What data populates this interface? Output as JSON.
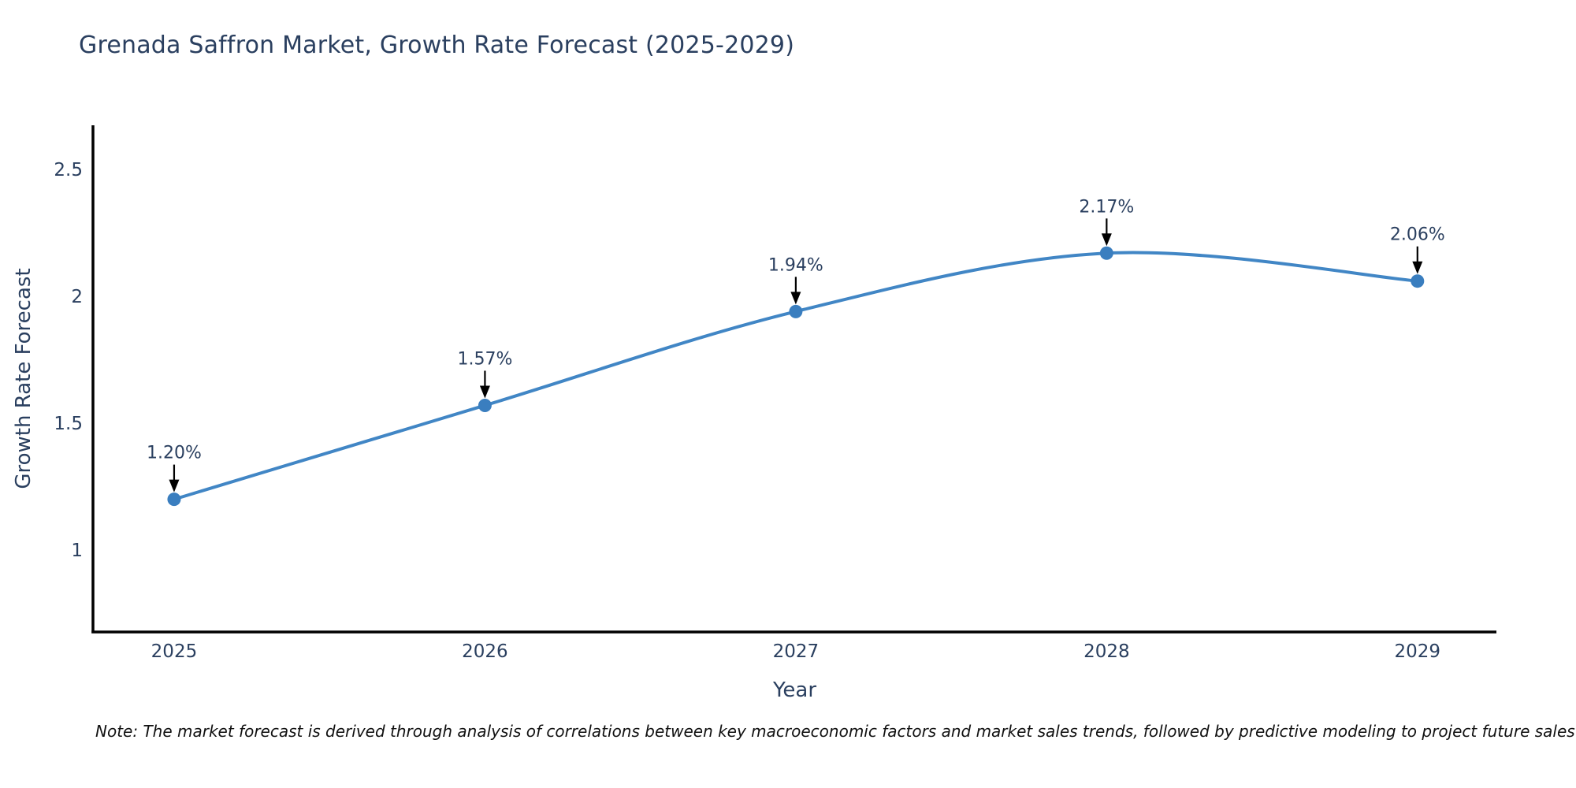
{
  "title": "Grenada Saffron Market, Growth Rate Forecast (2025-2029)",
  "note": "Note: The market forecast is derived through analysis of correlations between key macroeconomic factors and market sales trends, followed by predictive modeling to project future sales",
  "chart_data": {
    "type": "line",
    "title": "Grenada Saffron Market, Growth Rate Forecast (2025-2029)",
    "x": [
      2025,
      2026,
      2027,
      2028,
      2029
    ],
    "series": [
      {
        "name": "Growth Rate Forecast",
        "values": [
          1.2,
          1.57,
          1.94,
          2.17,
          2.06
        ],
        "point_labels": [
          "1.20%",
          "1.57%",
          "1.94%",
          "2.17%",
          "2.06%"
        ]
      }
    ],
    "xlabel": "Year",
    "ylabel": "Growth Rate Forecast",
    "xticks": [
      "2025",
      "2026",
      "2027",
      "2028",
      "2029"
    ],
    "yticks": [
      1,
      1.5,
      2,
      2.5
    ],
    "ytick_labels": [
      "1",
      "1.5",
      "2",
      "2.5"
    ],
    "xlim": [
      2024.739,
      2029.254
    ],
    "ylim": [
      0.677,
      2.674
    ],
    "grid": false,
    "legend": "none",
    "line_shape": "spline",
    "colors": {
      "line": "#4186c5",
      "marker": "#3a7ebf",
      "axis": "#000000",
      "text": "#2a3f5f",
      "annotation_text": "#2a3f5f",
      "annotation_arrow": "#000000",
      "background": "#ffffff"
    }
  }
}
